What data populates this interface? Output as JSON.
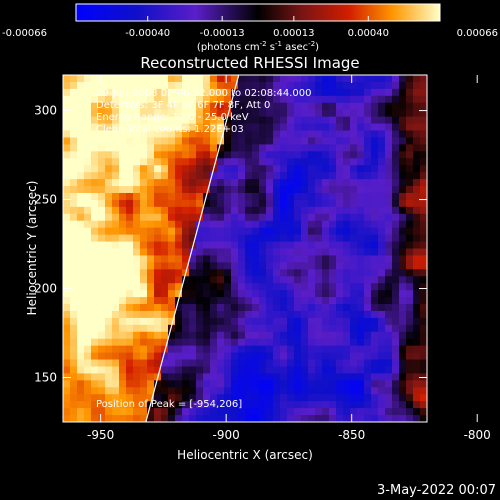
{
  "chart_data": {
    "type": "heatmap",
    "title": "Reconstructed RHESSI Image",
    "xlabel": "Heliocentric X (arcsec)",
    "ylabel": "Heliocentric Y (arcsec)",
    "xlim": [
      -965,
      -820
    ],
    "ylim": [
      125,
      320
    ],
    "x_ticks": [
      "-950",
      "-900",
      "-850",
      "-800"
    ],
    "y_ticks": [
      "150",
      "200",
      "250",
      "300"
    ],
    "colorbar": {
      "ticks": [
        "-0.00066",
        "-0.00040",
        "-0.00013",
        "0.00013",
        "0.00040",
        "0.00066"
      ],
      "unit_label_parts": [
        "(photons cm",
        "-2",
        " s",
        "-1",
        " asec",
        "-2",
        ")"
      ],
      "range": [
        -0.00066,
        0.00066
      ]
    },
    "annotations": [
      "29-Jun-2003 02:06:52.000 to 02:08:44.000",
      "Detectors: 3F 4F 5F 6F 7F 8F, Att 0",
      "Energy Range: 12.0 - 25.0 keV",
      "Clean    Total counts: 1.22E+03"
    ],
    "peak_label": "Position of Peak = [-954,206]",
    "peak": {
      "x": -954,
      "y": 206
    },
    "limb_line": [
      {
        "x": -932,
        "y": 125
      },
      {
        "x": -895,
        "y": 320
      }
    ],
    "grid": false
  },
  "footer": {
    "date": "3-May-2022 00:07"
  }
}
